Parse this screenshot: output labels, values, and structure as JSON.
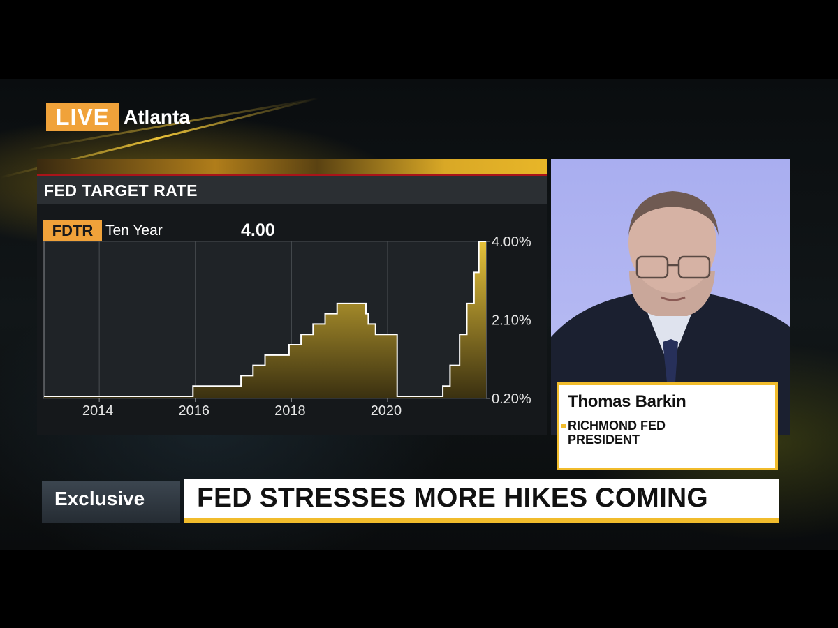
{
  "live": {
    "badge": "LIVE",
    "location": "Atlanta"
  },
  "panel": {
    "title": "FED TARGET RATE"
  },
  "ticker": {
    "symbol": "FDTR",
    "label": "Ten Year",
    "value": "4.00"
  },
  "colors": {
    "accent": "#f1bc2c",
    "live_orange": "#f0a23a",
    "area_top": "#e6c23a",
    "area_bottom": "#3a3010"
  },
  "chart_data": {
    "type": "area",
    "step": true,
    "x": [
      2012.85,
      2015.95,
      2016.95,
      2017.2,
      2017.45,
      2017.95,
      2018.2,
      2018.45,
      2018.7,
      2018.95,
      2019.55,
      2019.6,
      2019.75,
      2020.2,
      2021.15,
      2021.3,
      2021.5,
      2021.65,
      2021.8,
      2021.9,
      2022.05
    ],
    "values": [
      0.25,
      0.5,
      0.75,
      1.0,
      1.25,
      1.5,
      1.75,
      2.0,
      2.25,
      2.5,
      2.25,
      2.0,
      1.75,
      0.25,
      0.5,
      1.0,
      1.75,
      2.5,
      3.25,
      4.0,
      4.0
    ],
    "xlim": [
      2012.85,
      2022.05
    ],
    "ylim": [
      0.2,
      4.0
    ],
    "x_ticks": [
      {
        "value": 2014,
        "label": "2014"
      },
      {
        "value": 2016,
        "label": "2016"
      },
      {
        "value": 2018,
        "label": "2018"
      },
      {
        "value": 2020,
        "label": "2020"
      }
    ],
    "y_ticks": [
      {
        "value": 4.0,
        "label": "4.00%"
      },
      {
        "value": 2.1,
        "label": "2.10%"
      },
      {
        "value": 0.2,
        "label": "0.20%"
      }
    ],
    "grid": true,
    "legend": "none"
  },
  "guest": {
    "name": "Thomas Barkin",
    "title": "RICHMOND FED PRESIDENT"
  },
  "lower_third": {
    "tag": "Exclusive",
    "headline": "FED STRESSES MORE HIKES COMING"
  }
}
